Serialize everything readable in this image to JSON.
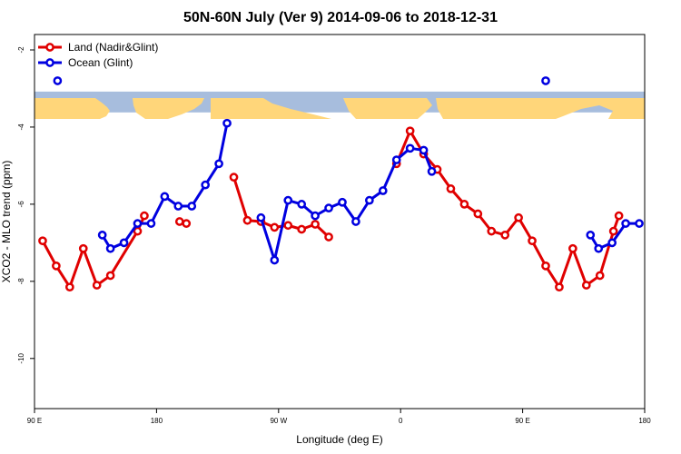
{
  "chart_data": {
    "type": "line",
    "title": "50N-60N July (Ver 9)   2014-09-06 to 2018-12-31",
    "xlabel": "Longitude (deg E)",
    "ylabel": "XCO2 - MLO trend (ppm)",
    "xlim": [
      90,
      540
    ],
    "ylim": [
      -11.3,
      -1.6
    ],
    "x_ticks": [
      {
        "value": 90,
        "label": "90 E"
      },
      {
        "value": 180,
        "label": "180"
      },
      {
        "value": 270,
        "label": "90 W"
      },
      {
        "value": 360,
        "label": "0"
      },
      {
        "value": 450,
        "label": "90 E"
      },
      {
        "value": 540,
        "label": "180"
      }
    ],
    "y_ticks": [
      {
        "value": -2,
        "label": "-2"
      },
      {
        "value": -4,
        "label": "-4"
      },
      {
        "value": -6,
        "label": "-6"
      },
      {
        "value": -8,
        "label": "-8"
      },
      {
        "value": -10,
        "label": "-10"
      }
    ],
    "map_strip": {
      "y_top": -3.08,
      "y_bottom": -3.62,
      "ocean_color": "#a7bddd",
      "land_color": "#ffd67a"
    },
    "series": [
      {
        "name": "Land (Nadir&Glint)",
        "color": "#e00000",
        "segments": [
          [
            [
              96,
              -6.95
            ],
            [
              106,
              -7.6
            ],
            [
              116,
              -8.15
            ],
            [
              126,
              -7.15
            ],
            [
              136,
              -8.1
            ],
            [
              146,
              -7.85
            ],
            [
              166,
              -6.7
            ],
            [
              171,
              -6.3
            ]
          ],
          [
            [
              197,
              -6.45
            ],
            [
              202,
              -6.5
            ]
          ],
          [
            [
              237,
              -5.3
            ],
            [
              247,
              -6.42
            ],
            [
              257,
              -6.45
            ],
            [
              267,
              -6.6
            ],
            [
              277,
              -6.55
            ],
            [
              287,
              -6.65
            ],
            [
              297,
              -6.52
            ],
            [
              307,
              -6.85
            ]
          ],
          [
            [
              357,
              -4.95
            ],
            [
              367,
              -4.1
            ],
            [
              377,
              -4.7
            ],
            [
              387,
              -5.1
            ],
            [
              397,
              -5.6
            ],
            [
              407,
              -6.0
            ],
            [
              417,
              -6.25
            ],
            [
              427,
              -6.7
            ],
            [
              437,
              -6.8
            ],
            [
              447,
              -6.35
            ],
            [
              457,
              -6.95
            ],
            [
              467,
              -7.6
            ],
            [
              477,
              -8.15
            ],
            [
              487,
              -7.15
            ],
            [
              497,
              -8.1
            ],
            [
              507,
              -7.85
            ],
            [
              517,
              -6.7
            ],
            [
              521,
              -6.3
            ]
          ]
        ]
      },
      {
        "name": "Ocean (Glint)",
        "color": "#0000e0",
        "segments": [
          [
            [
              107,
              -2.8
            ]
          ],
          [
            [
              140,
              -6.8
            ],
            [
              146,
              -7.15
            ],
            [
              156,
              -7.0
            ],
            [
              166,
              -6.5
            ],
            [
              176,
              -6.5
            ],
            [
              186,
              -5.8
            ],
            [
              196,
              -6.05
            ],
            [
              206,
              -6.05
            ],
            [
              216,
              -5.5
            ],
            [
              226,
              -4.95
            ],
            [
              232,
              -3.9
            ]
          ],
          [
            [
              257,
              -6.35
            ],
            [
              267,
              -7.45
            ],
            [
              277,
              -5.9
            ],
            [
              287,
              -6.0
            ],
            [
              297,
              -6.3
            ],
            [
              307,
              -6.1
            ],
            [
              317,
              -5.95
            ],
            [
              327,
              -6.45
            ],
            [
              337,
              -5.9
            ],
            [
              347,
              -5.65
            ],
            [
              357,
              -4.85
            ],
            [
              367,
              -4.55
            ],
            [
              377,
              -4.6
            ],
            [
              383,
              -5.15
            ]
          ],
          [
            [
              467,
              -2.8
            ]
          ],
          [
            [
              500,
              -6.8
            ],
            [
              506,
              -7.15
            ],
            [
              516,
              -7.0
            ],
            [
              526,
              -6.5
            ],
            [
              536,
              -6.5
            ]
          ]
        ]
      }
    ]
  }
}
